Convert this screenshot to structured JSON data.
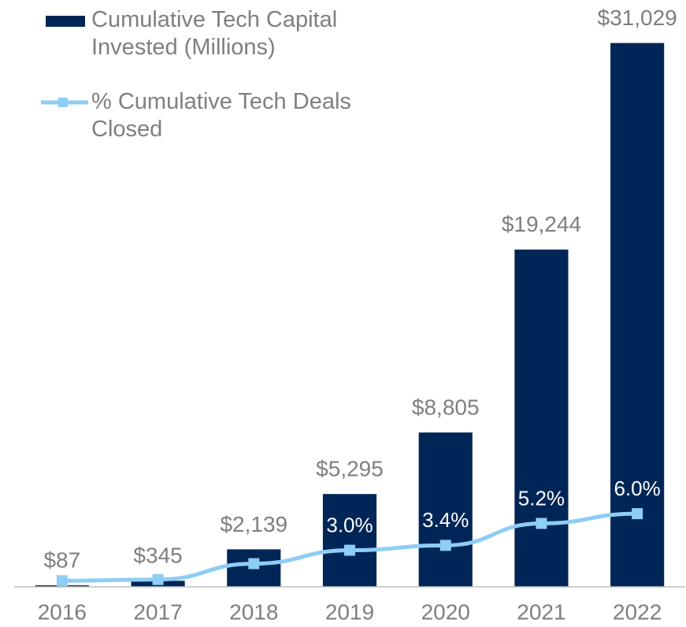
{
  "chart_data": {
    "type": "bar-line",
    "categories": [
      "2016",
      "2017",
      "2018",
      "2019",
      "2020",
      "2021",
      "2022"
    ],
    "series": [
      {
        "name": "Cumulative Tech Capital Invested (Millions)",
        "type": "bar",
        "color": "#002657",
        "values": [
          87,
          345,
          2139,
          5295,
          8805,
          19244,
          31029
        ],
        "value_labels": [
          "$87",
          "$345",
          "$2,139",
          "$5,295",
          "$8,805",
          "$19,244",
          "$31,029"
        ]
      },
      {
        "name": "% Cumulative Tech Deals Closed",
        "type": "line",
        "axis": "y2",
        "color": "#8ecdf5",
        "values": [
          0.5,
          0.6,
          1.9,
          3.0,
          3.4,
          5.2,
          6.0
        ],
        "value_labels": [
          null,
          null,
          null,
          "3.0%",
          "3.4%",
          "5.2%",
          "6.0%"
        ]
      }
    ],
    "ylim": [
      0,
      32000
    ],
    "y2lim": [
      0,
      46
    ]
  }
}
